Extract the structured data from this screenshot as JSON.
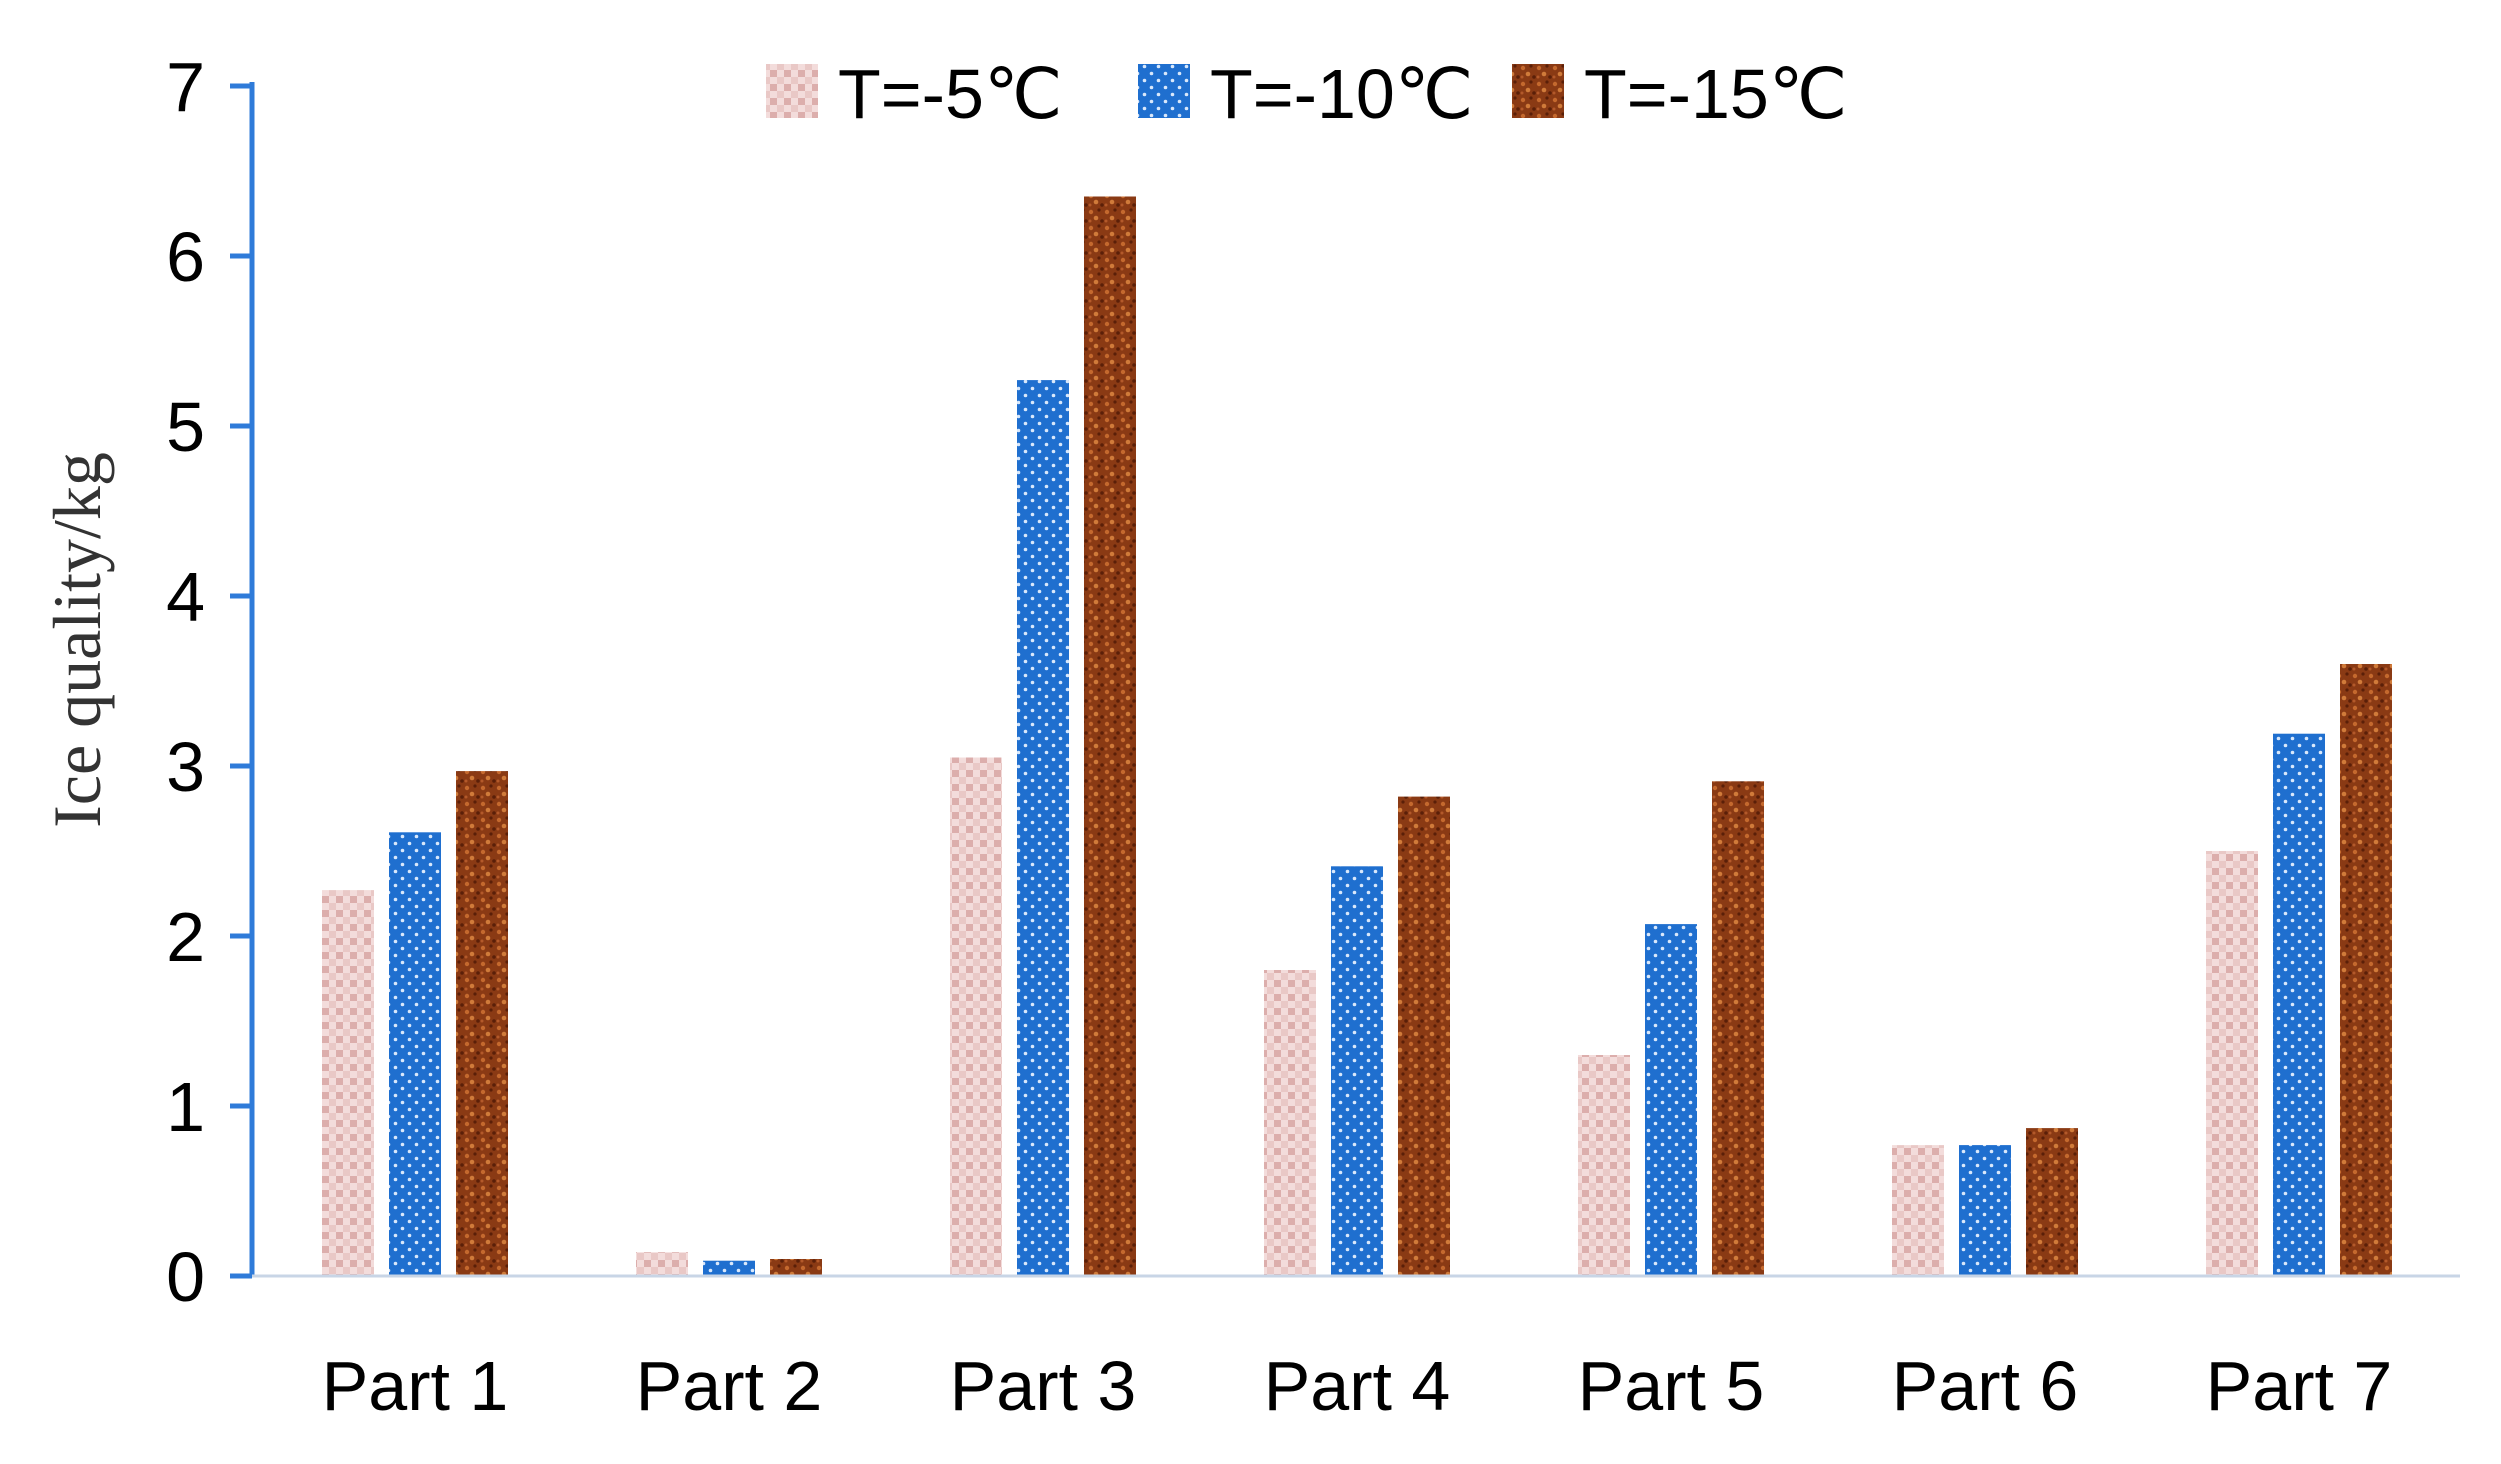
{
  "chart_data": {
    "type": "bar",
    "title": "",
    "xlabel": "",
    "ylabel": "Ice quality/kg",
    "ylim": [
      0,
      7
    ],
    "yticks": [
      "0",
      "1",
      "2",
      "3",
      "4",
      "5",
      "6",
      "7"
    ],
    "categories": [
      "Part 1",
      "Part 2",
      "Part 3",
      "Part 4",
      "Part 5",
      "Part 6",
      "Part 7"
    ],
    "legend_position": "top",
    "series": [
      {
        "name": "T=-5℃",
        "color": "#e7c3c1",
        "pattern": "check",
        "values": [
          2.27,
          0.14,
          3.05,
          1.8,
          1.3,
          0.77,
          2.5
        ]
      },
      {
        "name": "T=-10℃",
        "color": "#1f6fcf",
        "pattern": "dots",
        "values": [
          2.61,
          0.09,
          5.27,
          2.41,
          2.07,
          0.77,
          3.19
        ]
      },
      {
        "name": "T=-15℃",
        "color": "#8a3a14",
        "pattern": "speckle",
        "values": [
          2.97,
          0.1,
          6.35,
          2.82,
          2.91,
          0.87,
          3.6
        ]
      }
    ]
  }
}
